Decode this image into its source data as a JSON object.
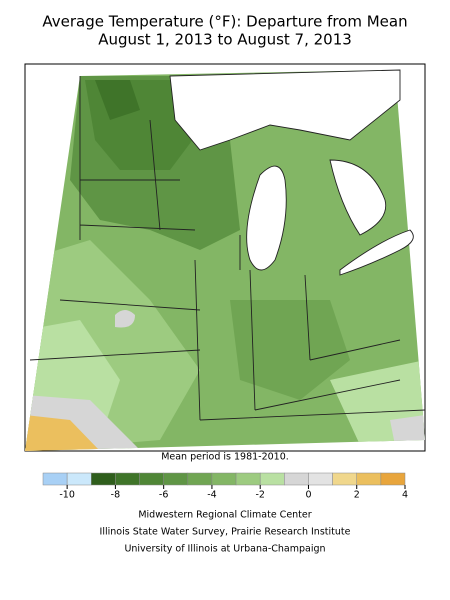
{
  "title": [
    "Average Temperature (°F): Departure from Mean",
    "August 1, 2013 to August 7, 2013"
  ],
  "map": {
    "note": "Mean period is 1981-2010."
  },
  "legend": {
    "bins": [
      -11,
      -10,
      -9,
      -8,
      -7,
      -6,
      -5,
      -4,
      -3,
      -2,
      -1,
      0,
      1,
      2,
      3,
      4
    ],
    "colors": [
      "#a8d0f5",
      "#cbe8fb",
      "#2f5e1c",
      "#3f7429",
      "#4f8636",
      "#5f9545",
      "#70a553",
      "#83b665",
      "#9dcb80",
      "#b9e0a2",
      "#d6d6d6",
      "#e3e3e3",
      "#f0d78c",
      "#ebbf5e",
      "#e8a53c"
    ],
    "ticks": [
      -10,
      -8,
      -6,
      -4,
      -2,
      0,
      2,
      4
    ]
  },
  "credits": [
    "Midwestern Regional Climate Center",
    "Illinois State Water Survey, Prairie Research Institute",
    "University of Illinois at Urbana-Champaign"
  ]
}
